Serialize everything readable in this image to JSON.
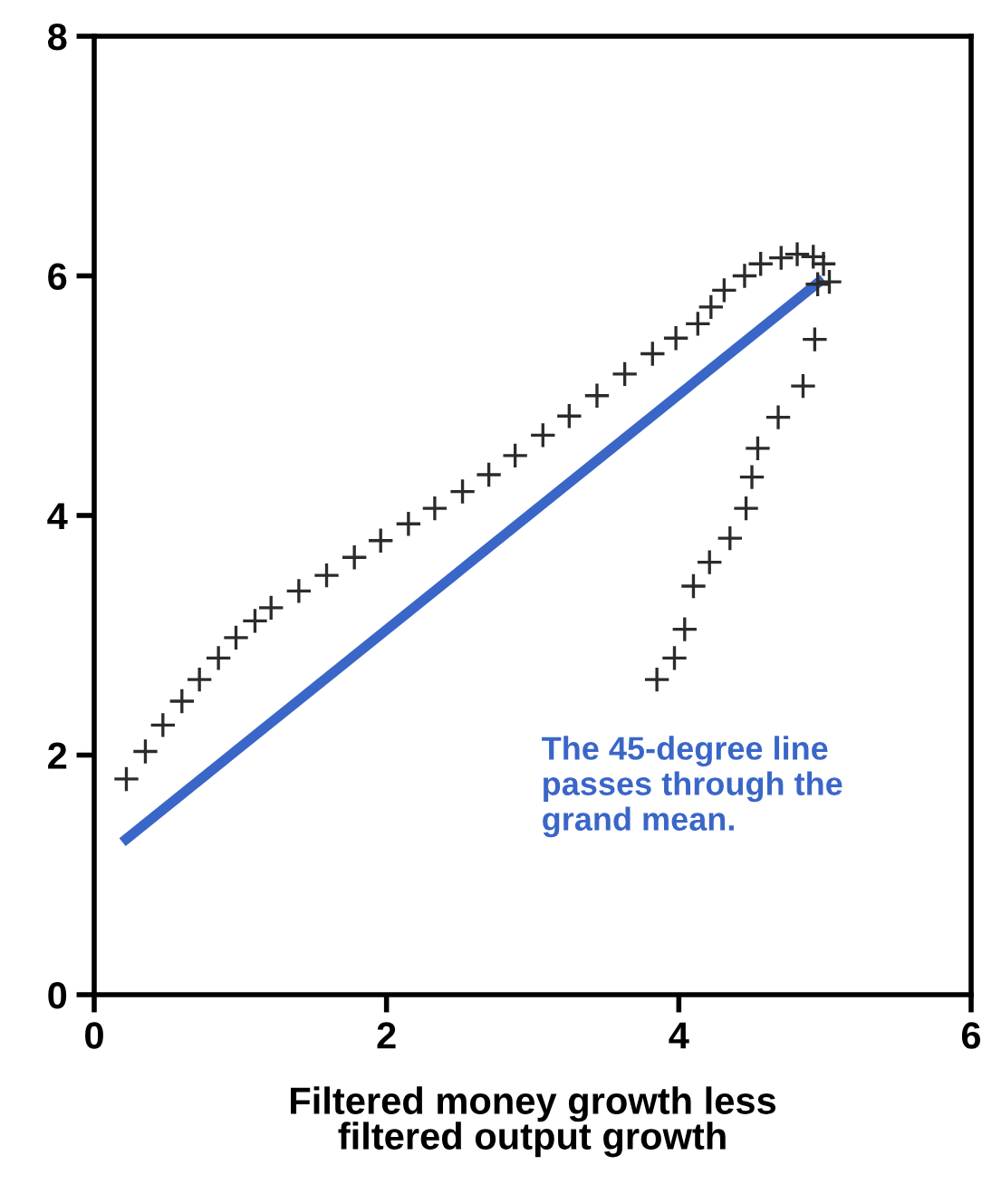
{
  "chart_data": {
    "type": "scatter",
    "xlabel": "Filtered money growth less\nfiltered output growth",
    "xlim": [
      0,
      6
    ],
    "ylim": [
      0,
      8
    ],
    "xticks": [
      0,
      2,
      4,
      6
    ],
    "yticks": [
      0,
      2,
      4,
      6,
      8
    ],
    "grid": false,
    "legend": false,
    "annotations": [
      "The 45-degree line\npasses through the\ngrand mean."
    ],
    "series": [
      {
        "color": "#2b2b2b",
        "marker": "cross",
        "x": [
          0.22,
          0.35,
          0.47,
          0.6,
          0.72,
          0.85,
          0.97,
          1.1,
          1.21,
          1.4,
          1.59,
          1.78,
          1.96,
          2.15,
          2.33,
          2.52,
          2.7,
          2.88,
          3.07,
          3.25,
          3.44,
          3.63,
          3.82,
          3.98,
          4.13,
          4.22,
          4.31,
          4.45,
          4.56,
          4.7,
          4.81,
          4.92,
          4.99,
          5.03,
          4.95,
          4.93,
          4.85,
          4.68,
          4.54,
          4.5,
          4.46,
          4.35,
          4.21,
          4.1,
          4.04,
          3.97,
          3.85
        ],
        "values": [
          1.8,
          2.03,
          2.25,
          2.45,
          2.63,
          2.81,
          2.98,
          3.12,
          3.23,
          3.37,
          3.5,
          3.65,
          3.79,
          3.93,
          4.06,
          4.2,
          4.34,
          4.5,
          4.67,
          4.83,
          5.0,
          5.18,
          5.35,
          5.48,
          5.6,
          5.74,
          5.88,
          6.0,
          6.1,
          6.15,
          6.18,
          6.16,
          6.1,
          5.95,
          5.93,
          5.47,
          5.08,
          4.82,
          4.56,
          4.32,
          4.06,
          3.81,
          3.61,
          3.41,
          3.05,
          2.81,
          2.63
        ]
      },
      {
        "type": "line",
        "color": "#3a66c8",
        "line_style": "solid",
        "x": [
          0.22,
          4.96
        ],
        "values": [
          1.3,
          5.95
        ]
      }
    ]
  }
}
